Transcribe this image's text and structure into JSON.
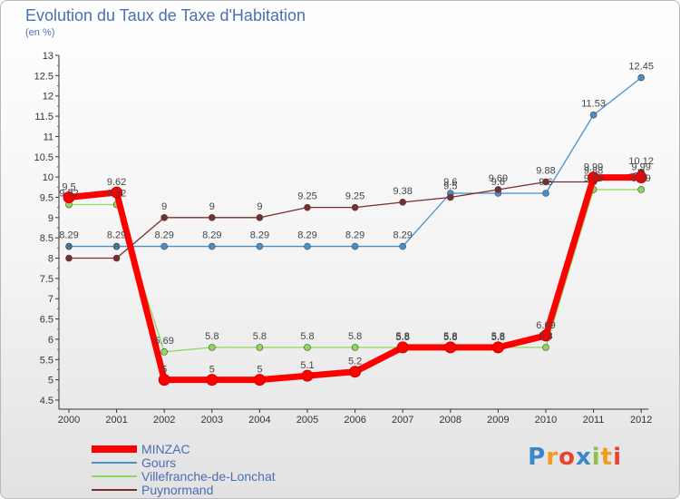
{
  "chart_data": {
    "type": "line",
    "title": "Evolution du Taux de Taxe d'Habitation",
    "ylabel": "(en %)",
    "xlabel": "",
    "x": [
      "2000",
      "2001",
      "2002",
      "2003",
      "2004",
      "2005",
      "2006",
      "2007",
      "2008",
      "2009",
      "2010",
      "2011",
      "2012"
    ],
    "ylim": [
      4.5,
      13
    ],
    "yticks": [
      "4.5",
      "5",
      "5.5",
      "6",
      "6.5",
      "7",
      "7.5",
      "8",
      "8.5",
      "9",
      "9.5",
      "10",
      "10.5",
      "11",
      "11.5",
      "12",
      "12.5",
      "13"
    ],
    "grid": false,
    "legend_position": "bottom-left",
    "series": [
      {
        "name": "MINZAC",
        "color": "#ff0000",
        "values": [
          9.5,
          9.62,
          5,
          5,
          5,
          5.1,
          5.2,
          5.8,
          5.8,
          5.8,
          6.09,
          9.99,
          9.99
        ],
        "labels": [
          "9.5",
          "9.62",
          "5",
          "5",
          "5",
          "5.1",
          "5.2",
          "5.8",
          "5.8",
          "5.8",
          "6.09",
          "9.99",
          "9.99"
        ]
      },
      {
        "name": "Gours",
        "color": "#4a90c8",
        "values": [
          8.29,
          8.29,
          8.29,
          8.29,
          8.29,
          8.29,
          8.29,
          8.29,
          9.6,
          9.6,
          9.6,
          11.53,
          12.45
        ],
        "labels": [
          "8.29",
          "8.29",
          "8.29",
          "8.29",
          "8.29",
          "8.29",
          "8.29",
          "8.29",
          "9.6",
          "9.6",
          "9.6",
          "11.53",
          "12.45"
        ]
      },
      {
        "name": "Villefranche-de-Lonchat",
        "color": "#8ed85a",
        "values": [
          9.32,
          9.32,
          5.69,
          5.8,
          5.8,
          5.8,
          5.8,
          5.8,
          5.8,
          5.8,
          5.8,
          9.69,
          9.69
        ],
        "labels": [
          "9.32",
          "9.32",
          "5.69",
          "5.8",
          "5.8",
          "5.8",
          "5.8",
          "5.8",
          "5.8",
          "5.8",
          "5.8",
          "9.69",
          "9.69"
        ]
      },
      {
        "name": "Puynormand",
        "color": "#7b2c2c",
        "values": [
          8,
          8,
          9,
          9,
          9,
          9.25,
          9.25,
          9.38,
          9.5,
          9.69,
          9.88,
          9.88,
          10.12
        ],
        "labels": [
          "8",
          "8",
          "9",
          "9",
          "9",
          "9.25",
          "9.25",
          "9.38",
          "9.5",
          "9.69",
          "9.88",
          "9.88",
          "10.12"
        ]
      }
    ]
  },
  "logo": {
    "letters": [
      "P",
      "r",
      "o",
      "x",
      "i",
      "t",
      "i"
    ]
  }
}
